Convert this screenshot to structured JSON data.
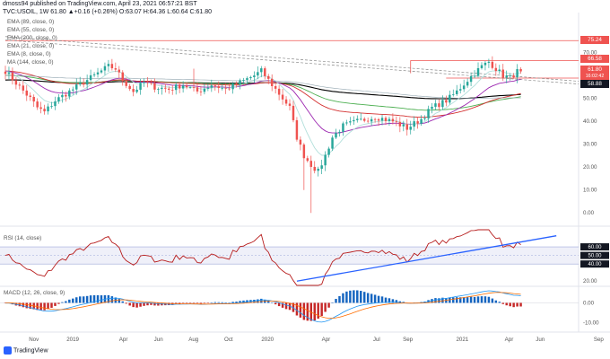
{
  "header": {
    "line1": "dmoss94 published on TradingView.com, April 23, 2021 06:57:21 BST",
    "line2": "TVC:USOIL, 1W  61.80  ▲+0.16 (+0.26%)  O:63.07 H:64.36 L:60.64 C:61.80"
  },
  "legend": [
    "EMA (89, close, 0)",
    "EMA (55, close, 0)",
    "EMA (200, close, 0)",
    "EMA (21, close, 0)",
    "EMA (8, close, 0)",
    "MA (144, close, 0)"
  ],
  "price_tags": {
    "resistance_high": "75.24",
    "resistance_low": "66.58",
    "last_price": "61.80",
    "countdown": "16:02:42",
    "support": "58.88"
  },
  "rsi_title": "RSI (14, close)",
  "macd_title": "MACD (12, 26, close, 9)",
  "logo_text": "TradingView",
  "colors": {
    "up": "#26a69a",
    "down": "#ef5350",
    "resistance": "#ef5350",
    "rsi": "#b71c1c",
    "trendline": "#2962ff",
    "macd_line": "#2196f3",
    "signal_line": "#ff6d00",
    "ema8": "#b2dfdb",
    "ema21": "#9c27b0",
    "ema55": "#d32f2f",
    "ema89": "#4caf50",
    "ema200": "#000000",
    "ma144": "#90a4ae"
  },
  "chart_data": [
    {
      "type": "candlestick",
      "x_ticks": [
        "Nov",
        "2019",
        "Apr",
        "Jun",
        "Aug",
        "Oct",
        "2020",
        "Apr",
        "Jul",
        "Sep",
        "2021",
        "Apr",
        "Jun",
        "Sep"
      ],
      "y_ticks": [
        70,
        60,
        50,
        40,
        30,
        20,
        10,
        0
      ],
      "ylim": [
        -5,
        82
      ],
      "horizontal_levels": [
        75.24,
        66.58,
        58.88
      ],
      "close_path": [
        {
          "t": 0,
          "v": 62
        },
        {
          "t": 4,
          "v": 55
        },
        {
          "t": 7,
          "v": 50
        },
        {
          "t": 9,
          "v": 46
        },
        {
          "t": 11,
          "v": 44
        },
        {
          "t": 14,
          "v": 49
        },
        {
          "t": 18,
          "v": 53
        },
        {
          "t": 22,
          "v": 57
        },
        {
          "t": 26,
          "v": 61
        },
        {
          "t": 29,
          "v": 64
        },
        {
          "t": 31,
          "v": 63
        },
        {
          "t": 33,
          "v": 58
        },
        {
          "t": 36,
          "v": 53
        },
        {
          "t": 39,
          "v": 57
        },
        {
          "t": 42,
          "v": 55
        },
        {
          "t": 46,
          "v": 54
        },
        {
          "t": 50,
          "v": 56
        },
        {
          "t": 54,
          "v": 53
        },
        {
          "t": 58,
          "v": 56
        },
        {
          "t": 62,
          "v": 54
        },
        {
          "t": 66,
          "v": 57
        },
        {
          "t": 70,
          "v": 60
        },
        {
          "t": 72,
          "v": 62
        },
        {
          "t": 74,
          "v": 58
        },
        {
          "t": 77,
          "v": 52
        },
        {
          "t": 80,
          "v": 46
        },
        {
          "t": 82,
          "v": 33
        },
        {
          "t": 84,
          "v": 25
        },
        {
          "t": 86,
          "v": 21
        },
        {
          "t": 88,
          "v": 18
        },
        {
          "t": 90,
          "v": 25
        },
        {
          "t": 92,
          "v": 33
        },
        {
          "t": 95,
          "v": 38
        },
        {
          "t": 99,
          "v": 40
        },
        {
          "t": 104,
          "v": 42
        },
        {
          "t": 109,
          "v": 40
        },
        {
          "t": 113,
          "v": 37
        },
        {
          "t": 117,
          "v": 41
        },
        {
          "t": 120,
          "v": 46
        },
        {
          "t": 124,
          "v": 49
        },
        {
          "t": 127,
          "v": 53
        },
        {
          "t": 130,
          "v": 58
        },
        {
          "t": 132,
          "v": 61
        },
        {
          "t": 134,
          "v": 64
        },
        {
          "t": 136,
          "v": 66
        },
        {
          "t": 138,
          "v": 63
        },
        {
          "t": 140,
          "v": 60
        },
        {
          "t": 142,
          "v": 59
        },
        {
          "t": 144,
          "v": 61.8
        }
      ],
      "lows_override": [
        {
          "t": 86,
          "v": 0
        },
        {
          "t": 84,
          "v": 10
        }
      ],
      "highs_override": [
        {
          "t": 53,
          "v": 63
        },
        {
          "t": 136,
          "v": 67.3
        }
      ],
      "ema_lengths": [
        8,
        21,
        55,
        89,
        200
      ],
      "ma_length": 144
    },
    {
      "type": "line",
      "name": "RSI",
      "y_ticks": [
        60,
        50,
        40,
        20
      ],
      "ylim": [
        15,
        80
      ],
      "band": [
        40,
        60
      ],
      "trendline": [
        {
          "t": 82,
          "v": 20
        },
        {
          "t": 155,
          "v": 73
        }
      ]
    },
    {
      "type": "bar",
      "name": "MACD",
      "y_ticks": [
        0,
        -10
      ],
      "ylim": [
        -14,
        8
      ]
    }
  ]
}
